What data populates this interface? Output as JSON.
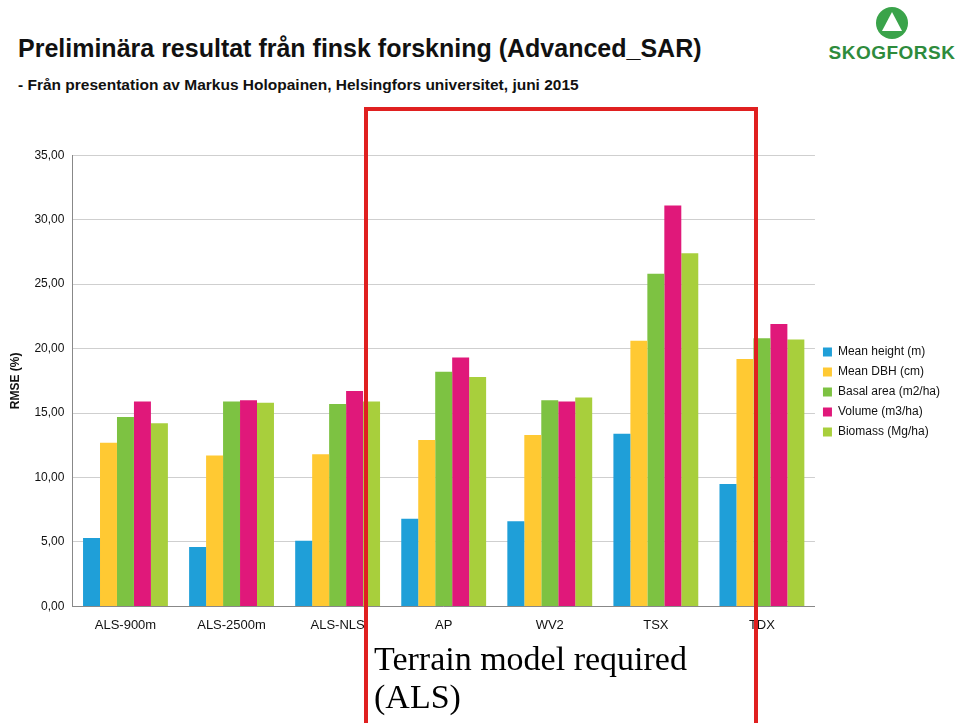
{
  "title": "Preliminära resultat från finsk forskning (Advanced_SAR)",
  "subtitle": "- Från presentation av Markus Holopainen, Helsingfors universitet, juni 2015",
  "logo": {
    "text": "SKOGFORSK"
  },
  "chart_data": {
    "type": "bar",
    "ylabel": "RMSE (%)",
    "annotations": [
      "Terrain model required (ALS)"
    ],
    "categories": [
      "ALS-900m",
      "ALS-2500m",
      "ALS-NLS",
      "AP",
      "WV2",
      "TSX",
      "TDX"
    ],
    "series": [
      {
        "name": "Mean height (m)",
        "color": "#1f9fd8",
        "values": [
          5.3,
          4.6,
          5.1,
          6.8,
          6.6,
          13.4,
          9.5
        ]
      },
      {
        "name": "Mean DBH (cm)",
        "color": "#ffc933",
        "values": [
          12.7,
          11.7,
          11.8,
          12.9,
          13.3,
          20.6,
          19.2
        ]
      },
      {
        "name": "Basal area (m2/ha)",
        "color": "#7dc242",
        "values": [
          14.7,
          15.9,
          15.7,
          18.2,
          16.0,
          25.8,
          20.8
        ]
      },
      {
        "name": "Volume (m3/ha)",
        "color": "#e0187a",
        "values": [
          15.9,
          16.0,
          16.7,
          19.3,
          15.9,
          31.1,
          21.9
        ]
      },
      {
        "name": "Biomass (Mg/ha)",
        "color": "#a8cf3c",
        "values": [
          14.2,
          15.8,
          15.9,
          17.8,
          16.2,
          27.4,
          20.7
        ]
      }
    ],
    "ylim": [
      0,
      35
    ],
    "yticks": [
      {
        "value": 0,
        "label": "0,00"
      },
      {
        "value": 5,
        "label": "5,00"
      },
      {
        "value": 10,
        "label": "10,00"
      },
      {
        "value": 15,
        "label": "15,00"
      },
      {
        "value": 20,
        "label": "20,00"
      },
      {
        "value": 25,
        "label": "25,00"
      },
      {
        "value": 30,
        "label": "30,00"
      },
      {
        "value": 35,
        "label": "35,00"
      }
    ],
    "grid": true,
    "legend": "right"
  }
}
